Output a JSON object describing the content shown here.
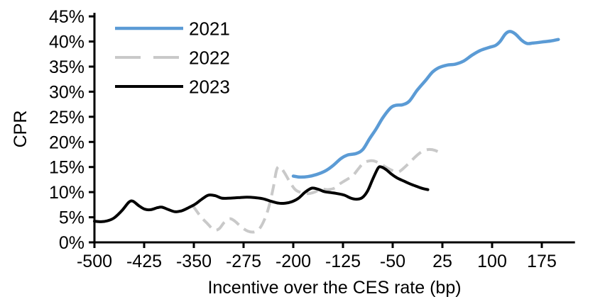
{
  "chart_data": {
    "type": "line",
    "title": "",
    "xlabel": "Incentive over the CES rate (bp)",
    "ylabel": "CPR",
    "xlim": [
      -500,
      225
    ],
    "ylim": [
      0,
      45
    ],
    "grid": false,
    "legend_position": "top-left",
    "axis_color": "#000000",
    "x_ticks": [
      -500,
      -425,
      -350,
      -275,
      -200,
      -125,
      -50,
      25,
      100,
      175
    ],
    "x_tick_labels": [
      "-500",
      "-425",
      "-350",
      "-275",
      "-200",
      "-125",
      "-50",
      "25",
      "100",
      "175"
    ],
    "y_ticks": [
      0,
      5,
      10,
      15,
      20,
      25,
      30,
      35,
      40,
      45
    ],
    "y_tick_labels": [
      "0%",
      "5%",
      "10%",
      "15%",
      "20%",
      "25%",
      "30%",
      "35%",
      "40%",
      "45%"
    ],
    "series": [
      {
        "name": "2021",
        "color": "#5B9BD5",
        "style": "solid",
        "points": [
          [
            -200,
            13.2
          ],
          [
            -190,
            13.0
          ],
          [
            -178,
            13.1
          ],
          [
            -165,
            13.5
          ],
          [
            -152,
            14.2
          ],
          [
            -140,
            15.3
          ],
          [
            -128,
            16.7
          ],
          [
            -118,
            17.4
          ],
          [
            -105,
            17.7
          ],
          [
            -95,
            18.5
          ],
          [
            -85,
            20.6
          ],
          [
            -75,
            22.6
          ],
          [
            -65,
            24.8
          ],
          [
            -53,
            26.8
          ],
          [
            -45,
            27.3
          ],
          [
            -35,
            27.4
          ],
          [
            -25,
            28.1
          ],
          [
            -13,
            30.3
          ],
          [
            0,
            32.3
          ],
          [
            10,
            33.9
          ],
          [
            20,
            34.8
          ],
          [
            32,
            35.3
          ],
          [
            45,
            35.5
          ],
          [
            57,
            36.1
          ],
          [
            70,
            37.3
          ],
          [
            82,
            38.2
          ],
          [
            95,
            38.8
          ],
          [
            105,
            39.2
          ],
          [
            112,
            40.0
          ],
          [
            120,
            41.5
          ],
          [
            127,
            42.0
          ],
          [
            135,
            41.5
          ],
          [
            145,
            40.2
          ],
          [
            153,
            39.6
          ],
          [
            162,
            39.7
          ],
          [
            175,
            39.9
          ],
          [
            188,
            40.1
          ],
          [
            200,
            40.4
          ]
        ]
      },
      {
        "name": "2022",
        "color": "#C9C9C9",
        "style": "dashed",
        "points": [
          [
            -352,
            7.4
          ],
          [
            -340,
            5.2
          ],
          [
            -330,
            3.8
          ],
          [
            -320,
            2.5
          ],
          [
            -312,
            2.7
          ],
          [
            -304,
            4.0
          ],
          [
            -296,
            4.7
          ],
          [
            -288,
            4.2
          ],
          [
            -278,
            3.0
          ],
          [
            -268,
            2.2
          ],
          [
            -258,
            2.1
          ],
          [
            -250,
            2.9
          ],
          [
            -242,
            5.0
          ],
          [
            -236,
            7.5
          ],
          [
            -230,
            11.0
          ],
          [
            -225,
            14.5
          ],
          [
            -220,
            15.0
          ],
          [
            -213,
            13.8
          ],
          [
            -205,
            12.0
          ],
          [
            -197,
            10.5
          ],
          [
            -188,
            9.9
          ],
          [
            -178,
            9.7
          ],
          [
            -168,
            10.0
          ],
          [
            -158,
            10.6
          ],
          [
            -148,
            10.5
          ],
          [
            -138,
            10.8
          ],
          [
            -128,
            11.8
          ],
          [
            -118,
            12.6
          ],
          [
            -110,
            13.3
          ],
          [
            -102,
            14.6
          ],
          [
            -94,
            15.8
          ],
          [
            -86,
            16.2
          ],
          [
            -78,
            16.2
          ],
          [
            -68,
            15.6
          ],
          [
            -58,
            14.8
          ],
          [
            -48,
            14.2
          ],
          [
            -40,
            14.1
          ],
          [
            -30,
            15.2
          ],
          [
            -20,
            16.5
          ],
          [
            -10,
            17.7
          ],
          [
            -2,
            18.3
          ],
          [
            6,
            18.5
          ],
          [
            14,
            18.3
          ],
          [
            25,
            17.6
          ]
        ]
      },
      {
        "name": "2023",
        "color": "#000000",
        "style": "solid",
        "points": [
          [
            -500,
            4.2
          ],
          [
            -490,
            4.1
          ],
          [
            -480,
            4.3
          ],
          [
            -470,
            4.9
          ],
          [
            -458,
            6.4
          ],
          [
            -448,
            8.0
          ],
          [
            -442,
            8.2
          ],
          [
            -433,
            7.3
          ],
          [
            -424,
            6.6
          ],
          [
            -415,
            6.5
          ],
          [
            -405,
            6.9
          ],
          [
            -398,
            7.0
          ],
          [
            -388,
            6.5
          ],
          [
            -378,
            6.1
          ],
          [
            -368,
            6.3
          ],
          [
            -358,
            6.9
          ],
          [
            -348,
            7.6
          ],
          [
            -338,
            8.6
          ],
          [
            -328,
            9.4
          ],
          [
            -318,
            9.3
          ],
          [
            -308,
            8.8
          ],
          [
            -296,
            8.8
          ],
          [
            -283,
            8.9
          ],
          [
            -270,
            9.0
          ],
          [
            -258,
            8.9
          ],
          [
            -246,
            8.7
          ],
          [
            -234,
            8.2
          ],
          [
            -222,
            7.8
          ],
          [
            -212,
            7.8
          ],
          [
            -202,
            8.1
          ],
          [
            -192,
            8.8
          ],
          [
            -182,
            10.0
          ],
          [
            -172,
            10.8
          ],
          [
            -163,
            10.6
          ],
          [
            -153,
            10.1
          ],
          [
            -143,
            9.9
          ],
          [
            -133,
            9.7
          ],
          [
            -123,
            9.4
          ],
          [
            -113,
            8.8
          ],
          [
            -104,
            8.6
          ],
          [
            -96,
            8.9
          ],
          [
            -88,
            10.2
          ],
          [
            -80,
            12.6
          ],
          [
            -72,
            14.8
          ],
          [
            -67,
            15.0
          ],
          [
            -60,
            14.5
          ],
          [
            -52,
            13.6
          ],
          [
            -43,
            12.8
          ],
          [
            -33,
            12.2
          ],
          [
            -23,
            11.6
          ],
          [
            -13,
            11.1
          ],
          [
            -4,
            10.7
          ],
          [
            3,
            10.5
          ]
        ]
      }
    ]
  }
}
